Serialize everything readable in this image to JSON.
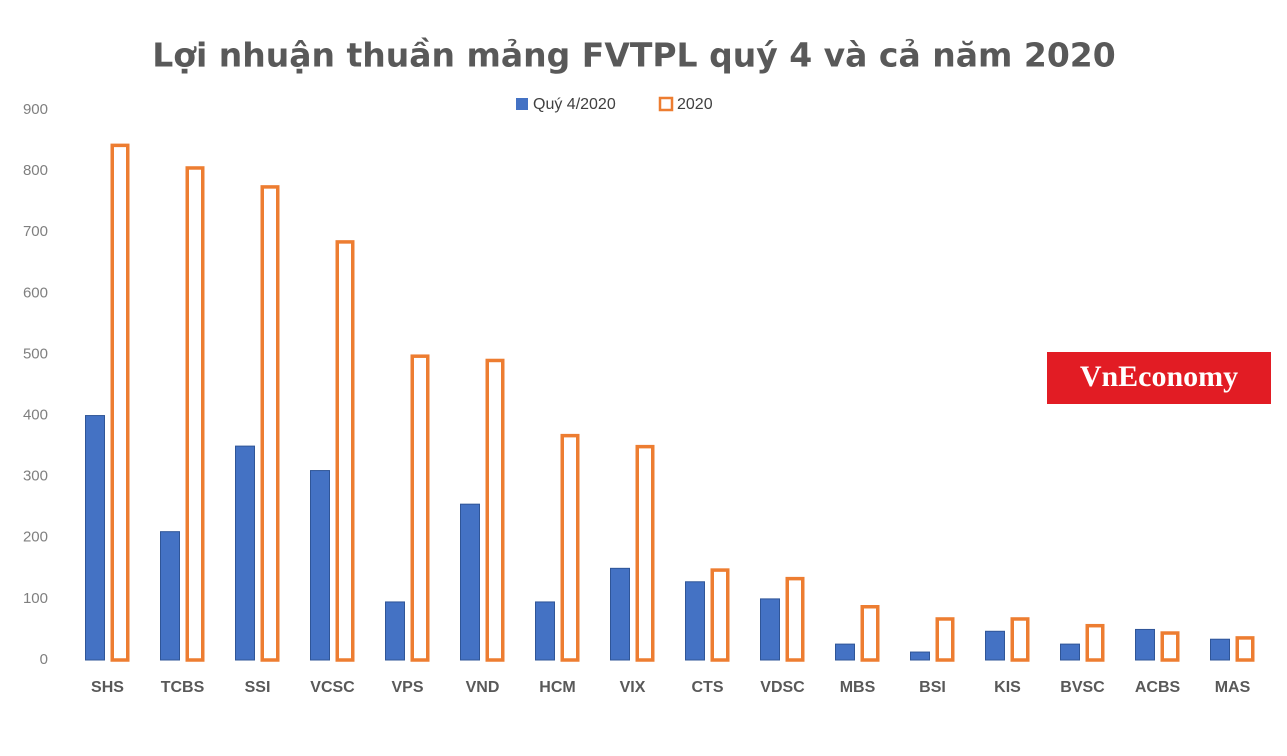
{
  "chart_data": {
    "type": "bar",
    "title": "Lợi nhuận thuần mảng FVTPL quý 4 và cả năm 2020",
    "categories": [
      "SHS",
      "TCBS",
      "SSI",
      "VCSC",
      "VPS",
      "VND",
      "HCM",
      "VIX",
      "CTS",
      "VDSC",
      "MBS",
      "BSI",
      "KIS",
      "BVSC",
      "ACBS",
      "MAS"
    ],
    "series": [
      {
        "name": "Quý 4/2020",
        "color": "#4472c4",
        "values": [
          400,
          210,
          350,
          310,
          95,
          255,
          95,
          150,
          128,
          100,
          26,
          13,
          47,
          26,
          50,
          34
        ]
      },
      {
        "name": "2020",
        "color": "#ed7d31",
        "values": [
          845,
          808,
          777,
          687,
          500,
          493,
          370,
          352,
          150,
          136,
          90,
          70,
          70,
          59,
          47,
          39
        ]
      }
    ],
    "ylim": [
      0,
      900
    ],
    "yticks": [
      0,
      100,
      200,
      300,
      400,
      500,
      600,
      700,
      800,
      900
    ],
    "grid": false
  },
  "logo": "VnEconomy"
}
